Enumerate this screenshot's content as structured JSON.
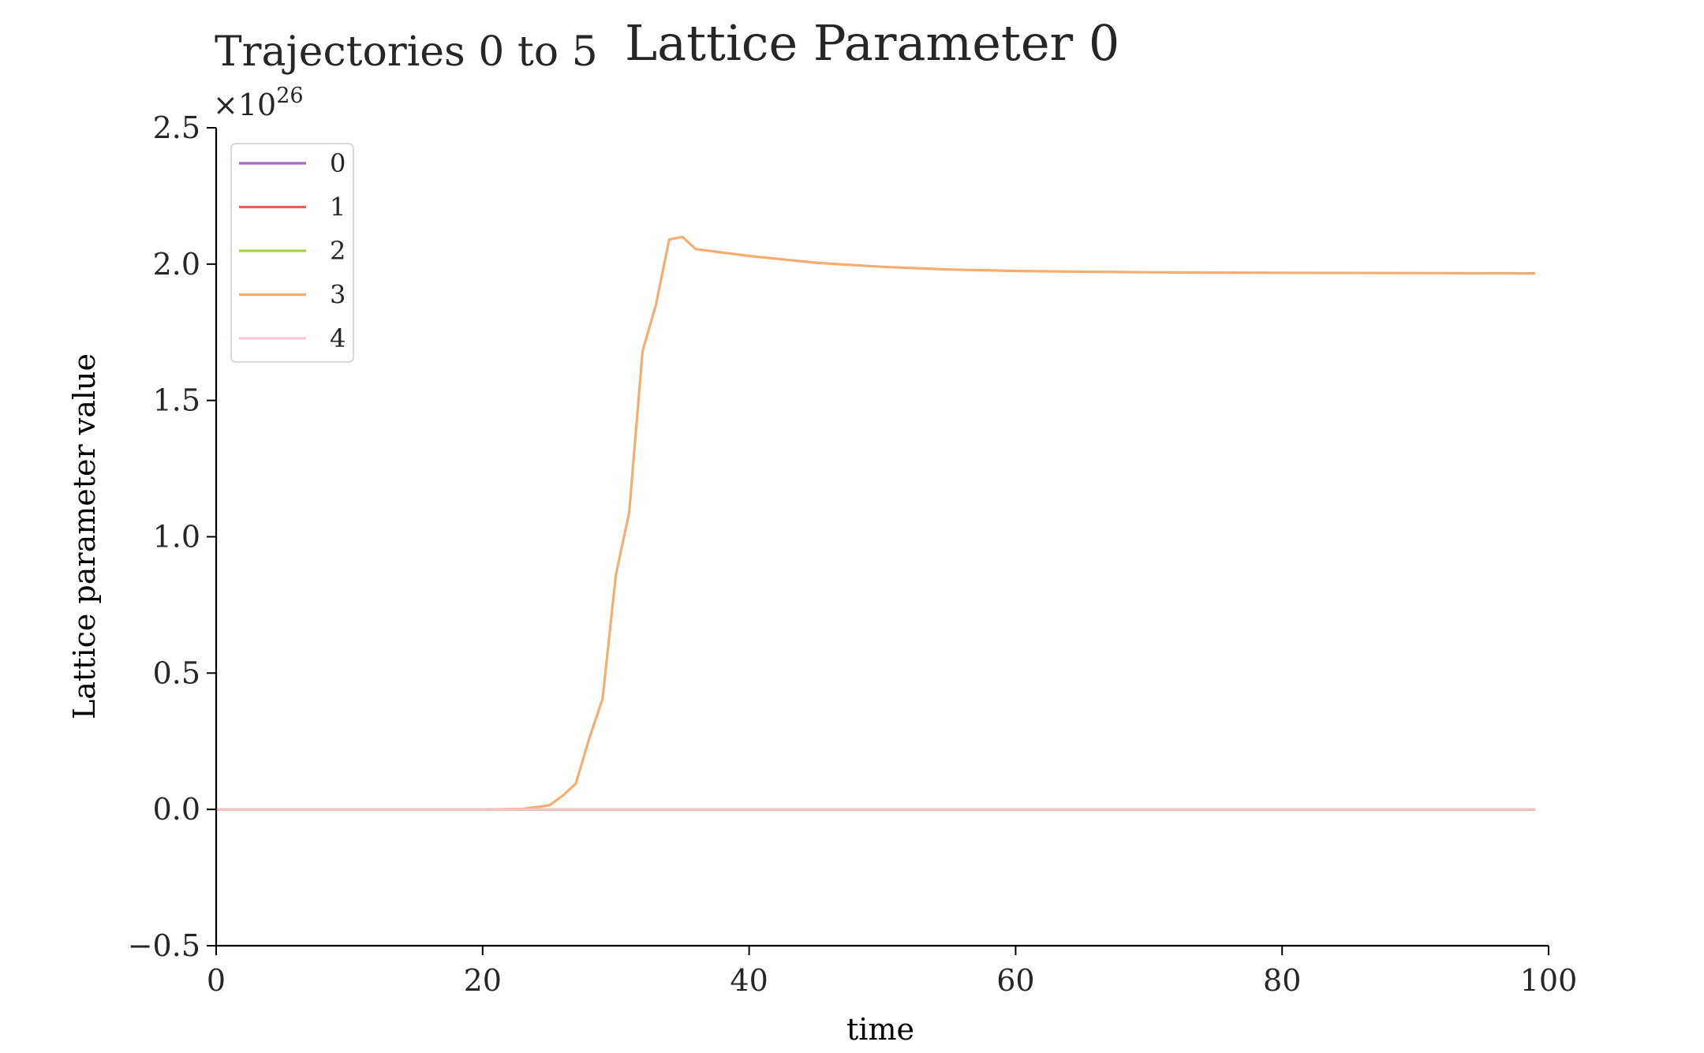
{
  "chart_data": {
    "type": "line",
    "title": "Lattice Parameter 0",
    "subtitle": "Trajectories 0 to 5",
    "xlabel": "time",
    "ylabel": "Lattice parameter value",
    "offset_label": "×10",
    "offset_exponent": "26",
    "xlim": [
      0,
      100
    ],
    "ylim": [
      -0.5,
      2.5
    ],
    "xticks": [
      0,
      20,
      40,
      60,
      80,
      100
    ],
    "xtick_labels": [
      "0",
      "20",
      "40",
      "60",
      "80",
      "100"
    ],
    "yticks": [
      -0.5,
      0.0,
      0.5,
      1.0,
      1.5,
      2.0,
      2.5
    ],
    "ytick_labels": [
      "−0.5",
      "0.0",
      "0.5",
      "1.0",
      "1.5",
      "2.0",
      "2.5"
    ],
    "grid": false,
    "legend": {
      "position": "top-left"
    },
    "series": [
      {
        "name": "0",
        "color": "#9b59b6",
        "x": [
          0,
          99
        ],
        "y": [
          0,
          0
        ]
      },
      {
        "name": "1",
        "color": "#e74c3c",
        "x": [
          0,
          99
        ],
        "y": [
          0,
          0
        ]
      },
      {
        "name": "2",
        "color": "#9acd32",
        "x": [
          0,
          99
        ],
        "y": [
          0,
          0
        ]
      },
      {
        "name": "3",
        "color": "#f4a460",
        "x": [
          0,
          20,
          23,
          24,
          25,
          26,
          27,
          28,
          29,
          30,
          31,
          32,
          33,
          34,
          35,
          36,
          40,
          45,
          50,
          55,
          60,
          65,
          70,
          80,
          90,
          99
        ],
        "y": [
          0,
          0,
          0.002,
          0.008,
          0.015,
          0.05,
          0.095,
          0.26,
          0.405,
          0.86,
          1.09,
          1.68,
          1.85,
          2.09,
          2.1,
          2.055,
          2.03,
          2.005,
          1.99,
          1.98,
          1.975,
          1.972,
          1.97,
          1.968,
          1.967,
          1.966
        ]
      },
      {
        "name": "4",
        "color": "#f7c6d9",
        "x": [
          0,
          99
        ],
        "y": [
          0,
          0
        ]
      }
    ]
  }
}
